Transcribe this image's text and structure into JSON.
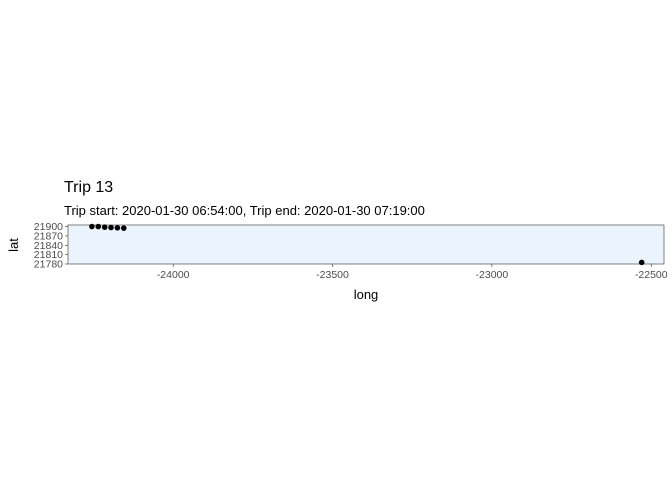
{
  "chart_data": {
    "type": "scatter",
    "title": "Trip 13",
    "subtitle": "Trip start: 2020-01-30 06:54:00, Trip end: 2020-01-30 07:19:00",
    "xlabel": "long",
    "ylabel": "lat",
    "xlim": [
      -24330,
      -22460
    ],
    "ylim": [
      21780,
      21905
    ],
    "x_ticks": [
      -24000,
      -23500,
      -23000,
      -22500
    ],
    "x_tick_labels": [
      "-24000",
      "-23500",
      "-23000",
      "-22500"
    ],
    "y_ticks": [
      21780,
      21810,
      21840,
      21870,
      21900
    ],
    "y_tick_labels": [
      "21780",
      "21810",
      "21840",
      "21870",
      "21900"
    ],
    "grid": false,
    "panel_background": "#ebf4fd",
    "point_color": "#000000",
    "series": [
      {
        "x": [
          -24255,
          -24235,
          -24215,
          -24195,
          -24175,
          -24155,
          -22530
        ],
        "y": [
          21900,
          21900,
          21898,
          21897,
          21896,
          21895,
          21785
        ]
      }
    ]
  }
}
